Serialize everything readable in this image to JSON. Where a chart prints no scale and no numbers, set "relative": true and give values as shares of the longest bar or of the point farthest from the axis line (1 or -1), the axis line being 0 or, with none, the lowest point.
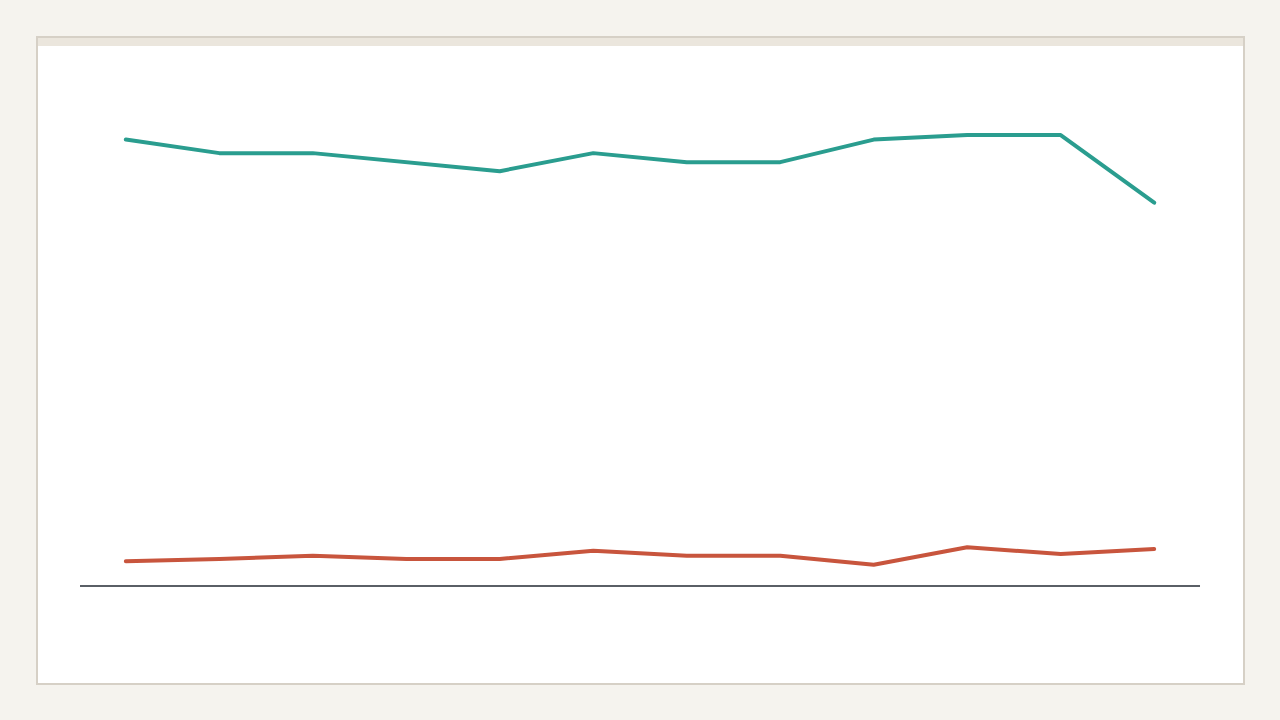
{
  "chart_data": {
    "type": "line",
    "relative": true,
    "categories": [
      null,
      null,
      null,
      null,
      null,
      null,
      null,
      null,
      null,
      null,
      null,
      null
    ],
    "series": [
      {
        "color": "#2a9d8f",
        "values": [
          0.99,
          0.96,
          0.96,
          0.94,
          0.92,
          0.96,
          0.94,
          0.94,
          0.99,
          1,
          1,
          0.85
        ]
      },
      {
        "color": "#c8553d",
        "values": [
          0.055,
          0.06,
          0.067,
          0.06,
          0.06,
          0.078,
          0.067,
          0.067,
          0.047,
          0.086,
          0.071,
          0.082
        ]
      }
    ]
  }
}
